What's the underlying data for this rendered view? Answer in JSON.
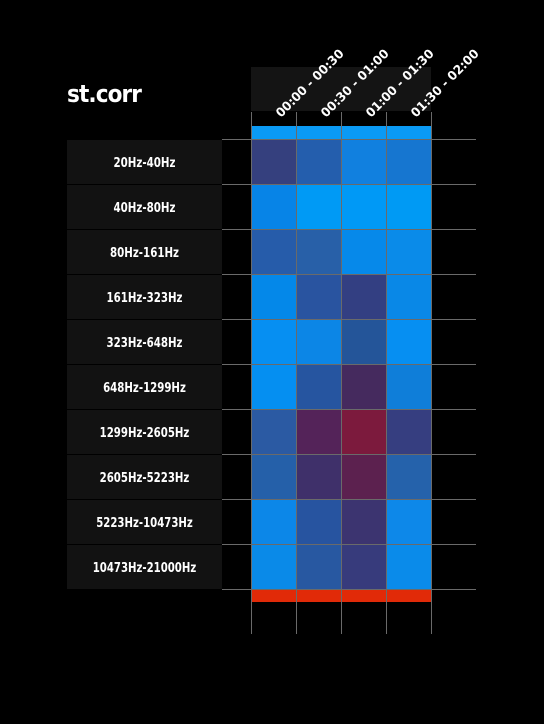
{
  "title": "st.corr",
  "colors": {
    "background": "#000000",
    "label_box": "#121212",
    "header_box": "#141414",
    "grid": "#6a6a6a",
    "top_bar": "#0a9af5",
    "bottom_bar": "#e12a08"
  },
  "chart_data": {
    "type": "heatmap",
    "title": "st.corr",
    "columns": [
      "00:00 - 00:30",
      "00:30 - 01:00",
      "01:00 - 01:30",
      "01:30 - 02:00"
    ],
    "rows": [
      "20Hz-40Hz",
      "40Hz-80Hz",
      "80Hz-161Hz",
      "161Hz-323Hz",
      "323Hz-648Hz",
      "648Hz-1299Hz",
      "1299Hz-2605Hz",
      "2605Hz-5223Hz",
      "5223Hz-10473Hz",
      "10473Hz-21000Hz"
    ],
    "cell_colors": [
      [
        "#35407e",
        "#245ead",
        "#1180df",
        "#1676d0"
      ],
      [
        "#0784e7",
        "#009af5",
        "#0099f6",
        "#009af4"
      ],
      [
        "#265caa",
        "#2860a8",
        "#0689ea",
        "#0a8be9"
      ],
      [
        "#0488e9",
        "#2954a0",
        "#333f82",
        "#0988e7"
      ],
      [
        "#068ff2",
        "#0c86e6",
        "#245599",
        "#068ff2"
      ],
      [
        "#058ff1",
        "#2655a0",
        "#452a5e",
        "#0f7ed9"
      ],
      [
        "#2b5aa3",
        "#542359",
        "#7c1a3d",
        "#363e80"
      ],
      [
        "#2560a9",
        "#3f306a",
        "#5c214f",
        "#2562ab"
      ],
      [
        "#0c87e8",
        "#2754a0",
        "#3c3470",
        "#0d88e9"
      ],
      [
        "#0a8ae8",
        "#2858a1",
        "#373b7c",
        "#0a8bea"
      ]
    ]
  }
}
